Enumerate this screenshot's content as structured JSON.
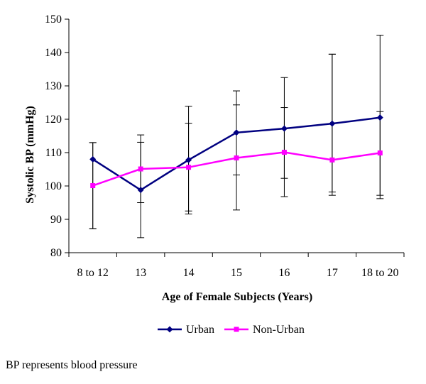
{
  "chart_data": {
    "type": "line",
    "title": "",
    "xlabel": "Age of Female Subjects (Years)",
    "ylabel": "Systolic BP (mmHg)",
    "ylim": [
      80,
      150
    ],
    "yticks": [
      80,
      90,
      100,
      110,
      120,
      130,
      140,
      150
    ],
    "grid": false,
    "legend_position": "bottom",
    "categories": [
      "8 to 12",
      "13",
      "14",
      "15",
      "16",
      "17",
      "18 to 20"
    ],
    "series": [
      {
        "name": "Urban",
        "color": "#000080",
        "marker": "diamond",
        "values": [
          108,
          98.8,
          107.8,
          116,
          117.2,
          118.7,
          120.5
        ],
        "error_low": [
          87.2,
          84.5,
          91.6,
          103.3,
          102.3,
          98.2,
          96.2
        ],
        "error_high": [
          113,
          113.1,
          118.8,
          128.5,
          132.5,
          139.5,
          145.2
        ]
      },
      {
        "name": "Non-Urban",
        "color": "#FF00FF",
        "marker": "square",
        "values": [
          100.1,
          105.1,
          105.6,
          108.4,
          110.1,
          107.8,
          109.9
        ],
        "error_low": [
          87.2,
          95,
          92.5,
          92.8,
          96.8,
          97.2,
          97.2
        ],
        "error_high": [
          113,
          115.3,
          123.9,
          124.3,
          123.5,
          139.5,
          122.3
        ]
      }
    ]
  },
  "footnote": "BP represents blood pressure"
}
